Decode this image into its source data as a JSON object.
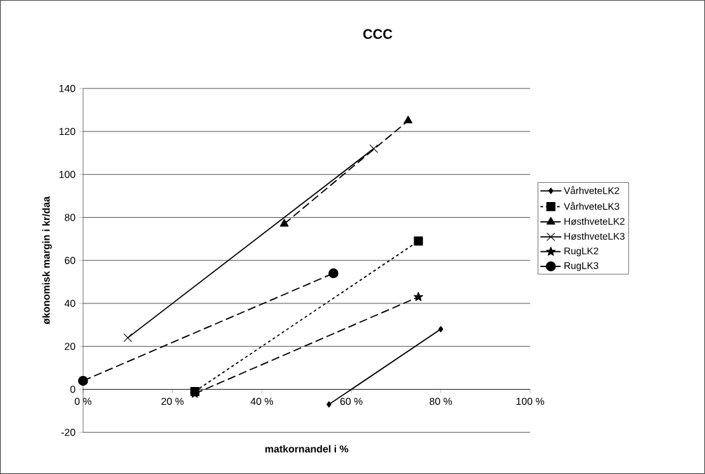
{
  "chart_data": {
    "type": "line",
    "title": "CCC",
    "xlabel": "matkornandel i %",
    "ylabel": "økonomisk margin i kr/daa",
    "xlim": [
      0,
      100
    ],
    "ylim": [
      -20,
      140
    ],
    "xticks": [
      {
        "value": 0,
        "label": "0 %"
      },
      {
        "value": 20,
        "label": "20 %"
      },
      {
        "value": 40,
        "label": "40 %"
      },
      {
        "value": 60,
        "label": "60 %"
      },
      {
        "value": 80,
        "label": "80 %"
      },
      {
        "value": 100,
        "label": "100 %"
      }
    ],
    "yticks": [
      -20,
      0,
      20,
      40,
      60,
      80,
      100,
      120,
      140
    ],
    "grid": "y",
    "legend": "right",
    "series": [
      {
        "name": "VårhveteLK2",
        "color": "#000000",
        "x": [
          55,
          80
        ],
        "values": [
          -7,
          28
        ],
        "marker": "diamond",
        "line_style": "solid"
      },
      {
        "name": "VårhveteLK3",
        "color": "#000000",
        "x": [
          25,
          75
        ],
        "values": [
          -1,
          69
        ],
        "marker": "square",
        "line_style": "dotted"
      },
      {
        "name": "HøsthveteLK2",
        "color": "#000000",
        "x": [
          45,
          72.7
        ],
        "values": [
          77,
          125
        ],
        "marker": "triangle",
        "line_style": "dashed"
      },
      {
        "name": "HøsthveteLK3",
        "color": "#000000",
        "x": [
          10,
          65
        ],
        "values": [
          24,
          112
        ],
        "marker": "cross",
        "line_style": "solid"
      },
      {
        "name": "RugLK2",
        "color": "#000000",
        "x": [
          25,
          75
        ],
        "values": [
          -2,
          43
        ],
        "marker": "star",
        "line_style": "dashed"
      },
      {
        "name": "RugLK3",
        "color": "#000000",
        "x": [
          0,
          56
        ],
        "values": [
          4,
          54
        ],
        "marker": "circle",
        "line_style": "dashed"
      }
    ]
  }
}
